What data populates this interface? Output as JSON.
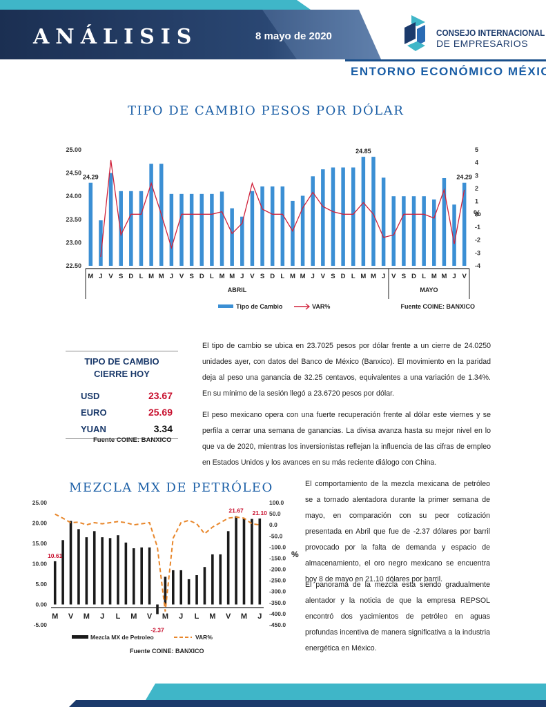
{
  "header": {
    "title": "ANÁLISIS",
    "date": "8 mayo de 2020",
    "org_line1": "CONSEJO INTERNACIONAL",
    "org_line2": "DE EMPRESARIOS",
    "subtitle": "ENTORNO ECONÓMICO MÉXICO",
    "colors": {
      "navy": "#1b3a6b",
      "accent": "#1a5ea6",
      "teal": "#3fb6c8"
    }
  },
  "exchange_section": {
    "title": "TIPO DE CAMBIO PESOS POR DÓLAR",
    "paragraph1": "El tipo de cambio se ubica en 23.7025 pesos por dólar frente a un cierre de 24.0250 unidades ayer, con datos del Banco de México (Banxico). El movimiento en la paridad deja al peso una ganancia de 32.25 centavos, equivalentes a una variación de 1.34%. En su mínimo de la sesión llegó a 23.6720 pesos por dólar.",
    "paragraph2": "El peso mexicano opera con una fuerte recuperación frente al dólar este viernes y se perfila a cerrar una semana de ganancias. La divisa avanza hasta su mejor nivel en lo que va de 2020, mientras los inversionistas reflejan la influencia de las cifras de empleo en Estados Unidos y los avances en su más reciente diálogo con China."
  },
  "rates_table": {
    "title_line1": "TIPO DE CAMBIO",
    "title_line2": "CIERRE HOY",
    "rows": [
      {
        "label": "USD",
        "value": "23.67",
        "color": "#c8102e"
      },
      {
        "label": "EURO",
        "value": "25.69",
        "color": "#c8102e"
      },
      {
        "label": "YUAN",
        "value": "3.34",
        "color": "#111111"
      }
    ],
    "source": "Fuente COINE: BANXICO"
  },
  "oil_section": {
    "title": "MEZCLA MX DE PETRÓLEO",
    "paragraph1": "El comportamiento de la mezcla mexicana de petróleo se a tornado alentadora durante la primer semana de mayo, en comparación con su peor cotización presentada en Abril que fue de -2.37 dólares por barril provocado por la falta de demanda y espacio de almacenamiento, el oro negro mexicano se encuentra hoy 8 de mayo en 21.10 dólares por barril.",
    "paragraph2": "El panorama de la mezcla esta siendo gradualmente alentador y la noticia de que la empresa REPSOL encontró dos yacimientos de petróleo en aguas profundas incentiva de manera significativa a la industria energética en México."
  },
  "chart_data": [
    {
      "type": "bar",
      "categories": [
        "M",
        "J",
        "V",
        "S",
        "D",
        "L",
        "M",
        "M",
        "J",
        "V",
        "S",
        "D",
        "L",
        "M",
        "M",
        "J",
        "V",
        "S",
        "D",
        "L",
        "M",
        "M",
        "J",
        "V",
        "S",
        "D",
        "L",
        "M",
        "M",
        "J",
        "V",
        "S",
        "D",
        "L",
        "M",
        "M",
        "J",
        "V"
      ],
      "groups": [
        {
          "label": "ABRIL",
          "count": 30
        },
        {
          "label": "MAYO",
          "count": 8
        }
      ],
      "series": [
        {
          "name": "Tipo de Cambio",
          "type": "bar",
          "axis": "left",
          "color": "#3b8fd4",
          "values": [
            24.29,
            23.48,
            24.5,
            24.11,
            24.11,
            24.11,
            24.7,
            24.7,
            24.05,
            24.05,
            24.05,
            24.05,
            24.05,
            24.1,
            23.74,
            23.56,
            24.11,
            24.21,
            24.21,
            24.21,
            23.9,
            24.01,
            24.43,
            24.58,
            24.62,
            24.62,
            24.62,
            24.85,
            24.85,
            24.4,
            24.0,
            24.0,
            24.0,
            24.0,
            23.93,
            24.39,
            23.82,
            24.29
          ]
        },
        {
          "name": "VAR%",
          "type": "line",
          "axis": "right",
          "color": "#d0213a",
          "values": [
            null,
            -3.3,
            4.2,
            -1.6,
            0,
            0,
            2.4,
            0,
            -2.6,
            0,
            0,
            0,
            0,
            0.2,
            -1.5,
            -0.7,
            2.4,
            0.4,
            0,
            0,
            -1.3,
            0.5,
            1.7,
            0.6,
            0.2,
            0,
            0,
            0.9,
            0,
            -1.8,
            -1.6,
            0,
            0,
            0,
            -0.3,
            1.9,
            -2.3,
            1.9
          ]
        }
      ],
      "labels": [
        {
          "index": 0,
          "text": "24.29"
        },
        {
          "index": 27,
          "text": "24.85"
        },
        {
          "index": 37,
          "text": "24.29"
        }
      ],
      "ylim": [
        22.5,
        25.0
      ],
      "yticks": [
        "25.00",
        "24.50",
        "24.00",
        "23.50",
        "23.00",
        "22.50"
      ],
      "y2lim": [
        -4,
        5
      ],
      "y2ticks": [
        "5",
        "4",
        "3",
        "2",
        "1",
        "0",
        "-1",
        "-2",
        "-3",
        "-4"
      ],
      "y2label": "%",
      "legend": {
        "bar": "Tipo de Cambio",
        "line": "VAR%"
      },
      "source": "Fuente COINE: BANXICO"
    },
    {
      "type": "bar",
      "categories": [
        "M",
        "",
        "V",
        "",
        "M",
        "",
        "J",
        "",
        "L",
        "",
        "M",
        "",
        "V",
        "",
        "M",
        "",
        "J",
        "",
        "L",
        "",
        "M",
        "",
        "V",
        "",
        "M",
        "",
        "J"
      ],
      "series": [
        {
          "name": "Mezcla MX de Petroleo",
          "type": "bar",
          "axis": "left",
          "color": "#222222",
          "values": [
            10.61,
            15.8,
            20.5,
            18.5,
            16.5,
            18.0,
            16.5,
            16.3,
            17.0,
            15.2,
            13.8,
            14.0,
            14.0,
            -2.37,
            6.8,
            8.4,
            8.4,
            6.2,
            7.2,
            9.2,
            12.3,
            12.3,
            18.0,
            21.67,
            21.0,
            21.0,
            21.1
          ]
        },
        {
          "name": "VAR%",
          "type": "line",
          "axis": "right",
          "color": "#e8862a",
          "values": [
            48,
            30,
            10,
            12,
            0,
            10,
            5,
            10,
            15,
            10,
            0,
            5,
            10,
            -100,
            -390,
            -60,
            10,
            20,
            5,
            -40,
            -10,
            10,
            30,
            35,
            30,
            5,
            0
          ]
        }
      ],
      "labels": [
        {
          "index": 0,
          "text": "10.61"
        },
        {
          "index": 13,
          "text": "-2.37"
        },
        {
          "index": 23,
          "text": "21.67"
        },
        {
          "index": 26,
          "text": "21.10"
        }
      ],
      "ylim": [
        -5,
        25
      ],
      "yticks": [
        "25.00",
        "20.00",
        "15.00",
        "10.00",
        "5.00",
        "0.00",
        "-5.00"
      ],
      "y2lim": [
        -450,
        100
      ],
      "y2ticks": [
        "100.0",
        "50.0",
        "0.0",
        "-50.0",
        "-100.0",
        "-150.0",
        "-200.0",
        "-250.0",
        "-300.0",
        "-350.0",
        "-400.0",
        "-450.0"
      ],
      "y2label": "%",
      "legend": {
        "bar": "Mezcla MX de Petroleo",
        "line": "VAR%"
      },
      "source": "Fuente COINE: BANXICO"
    }
  ]
}
